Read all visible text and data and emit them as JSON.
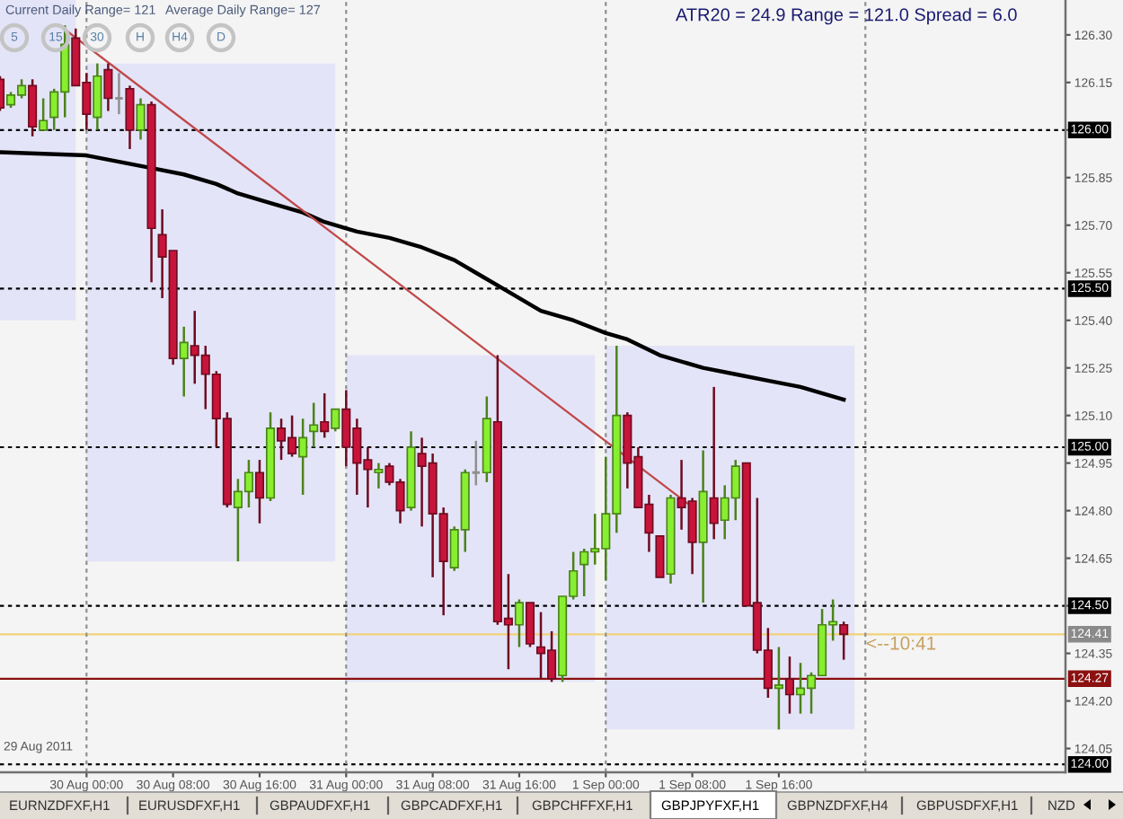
{
  "chart_data": {
    "type": "candlestick",
    "x": [
      "2011-08-29T16:00",
      "2011-08-29T17:00",
      "2011-08-29T18:00",
      "2011-08-29T19:00",
      "2011-08-29T20:00",
      "2011-08-29T21:00",
      "2011-08-29T22:00",
      "2011-08-29T23:00",
      "2011-08-30T00:00",
      "2011-08-30T01:00",
      "2011-08-30T02:00",
      "2011-08-30T03:00",
      "2011-08-30T04:00",
      "2011-08-30T05:00",
      "2011-08-30T06:00",
      "2011-08-30T07:00",
      "2011-08-30T08:00",
      "2011-08-30T09:00",
      "2011-08-30T10:00",
      "2011-08-30T11:00",
      "2011-08-30T12:00",
      "2011-08-30T13:00",
      "2011-08-30T14:00",
      "2011-08-30T15:00",
      "2011-08-30T16:00",
      "2011-08-30T17:00",
      "2011-08-30T18:00",
      "2011-08-30T19:00",
      "2011-08-30T20:00",
      "2011-08-30T21:00",
      "2011-08-30T22:00",
      "2011-08-30T23:00",
      "2011-08-31T00:00",
      "2011-08-31T01:00",
      "2011-08-31T02:00",
      "2011-08-31T03:00",
      "2011-08-31T04:00",
      "2011-08-31T05:00",
      "2011-08-31T06:00",
      "2011-08-31T07:00",
      "2011-08-31T08:00",
      "2011-08-31T09:00",
      "2011-08-31T10:00",
      "2011-08-31T11:00",
      "2011-08-31T12:00",
      "2011-08-31T13:00",
      "2011-08-31T14:00",
      "2011-08-31T15:00",
      "2011-08-31T16:00",
      "2011-08-31T17:00",
      "2011-08-31T18:00",
      "2011-08-31T19:00",
      "2011-08-31T20:00",
      "2011-08-31T21:00",
      "2011-08-31T22:00",
      "2011-08-31T23:00",
      "2011-09-01T00:00",
      "2011-09-01T01:00",
      "2011-09-01T02:00",
      "2011-09-01T03:00",
      "2011-09-01T04:00",
      "2011-09-01T05:00",
      "2011-09-01T06:00",
      "2011-09-01T07:00",
      "2011-09-01T08:00",
      "2011-09-01T09:00",
      "2011-09-01T10:00",
      "2011-09-01T11:00",
      "2011-09-01T12:00",
      "2011-09-01T13:00",
      "2011-09-01T14:00",
      "2011-09-01T15:00",
      "2011-09-01T16:00",
      "2011-09-01T17:00",
      "2011-09-01T18:00",
      "2011-09-01T19:00",
      "2011-09-01T20:00",
      "2011-09-01T21:00",
      "2011-09-01T22:00"
    ],
    "ohlc": [
      [
        126.16,
        126.17,
        126.06,
        126.07
      ],
      [
        126.08,
        126.12,
        126.07,
        126.11
      ],
      [
        126.11,
        126.16,
        126.1,
        126.14
      ],
      [
        126.14,
        126.16,
        125.98,
        126.01
      ],
      [
        126.0,
        126.1,
        126.0,
        126.03
      ],
      [
        126.04,
        126.13,
        126.0,
        126.12
      ],
      [
        126.12,
        126.33,
        126.04,
        126.27
      ],
      [
        126.29,
        126.32,
        126.14,
        126.14
      ],
      [
        126.15,
        126.18,
        126.0,
        126.05
      ],
      [
        126.04,
        126.21,
        126.0,
        126.17
      ],
      [
        126.19,
        126.21,
        126.06,
        126.1
      ],
      [
        126.1,
        126.18,
        126.05,
        126.1
      ],
      [
        126.13,
        126.14,
        125.94,
        126.0
      ],
      [
        126.0,
        126.1,
        125.97,
        126.08
      ],
      [
        126.08,
        126.09,
        125.52,
        125.69
      ],
      [
        125.67,
        125.75,
        125.47,
        125.6
      ],
      [
        125.62,
        125.62,
        125.26,
        125.28
      ],
      [
        125.28,
        125.38,
        125.16,
        125.33
      ],
      [
        125.32,
        125.43,
        125.2,
        125.29
      ],
      [
        125.29,
        125.32,
        125.12,
        125.23
      ],
      [
        125.23,
        125.24,
        125.0,
        125.09
      ],
      [
        125.09,
        125.11,
        124.81,
        124.82
      ],
      [
        124.81,
        124.9,
        124.64,
        124.86
      ],
      [
        124.86,
        124.96,
        124.81,
        124.92
      ],
      [
        124.92,
        124.96,
        124.76,
        124.84
      ],
      [
        124.84,
        125.11,
        124.83,
        125.06
      ],
      [
        125.06,
        125.09,
        124.96,
        125.02
      ],
      [
        125.03,
        125.1,
        124.97,
        124.98
      ],
      [
        124.97,
        125.09,
        124.85,
        125.03
      ],
      [
        125.05,
        125.14,
        125.0,
        125.07
      ],
      [
        125.08,
        125.17,
        125.03,
        125.05
      ],
      [
        125.06,
        125.12,
        125.05,
        125.12
      ],
      [
        125.12,
        125.18,
        124.94,
        125.0
      ],
      [
        125.06,
        125.09,
        124.85,
        124.95
      ],
      [
        124.96,
        125.0,
        124.81,
        124.93
      ],
      [
        124.92,
        124.95,
        124.87,
        124.93
      ],
      [
        124.94,
        124.95,
        124.88,
        124.89
      ],
      [
        124.89,
        124.9,
        124.76,
        124.8
      ],
      [
        124.81,
        125.05,
        124.8,
        125.0
      ],
      [
        124.98,
        125.03,
        124.75,
        124.94
      ],
      [
        124.95,
        124.98,
        124.59,
        124.79
      ],
      [
        124.79,
        124.81,
        124.47,
        124.64
      ],
      [
        124.62,
        124.75,
        124.61,
        124.74
      ],
      [
        124.74,
        124.93,
        124.67,
        124.92
      ],
      [
        124.92,
        125.02,
        124.88,
        124.92
      ],
      [
        124.92,
        125.16,
        124.89,
        125.09
      ],
      [
        125.08,
        125.29,
        124.44,
        124.45
      ],
      [
        124.46,
        124.6,
        124.3,
        124.44
      ],
      [
        124.44,
        124.52,
        124.37,
        124.51
      ],
      [
        124.51,
        124.51,
        124.37,
        124.38
      ],
      [
        124.37,
        124.48,
        124.27,
        124.35
      ],
      [
        124.36,
        124.42,
        124.26,
        124.27
      ],
      [
        124.28,
        124.53,
        124.26,
        124.53
      ],
      [
        124.53,
        124.67,
        124.52,
        124.61
      ],
      [
        124.63,
        124.68,
        124.53,
        124.67
      ],
      [
        124.67,
        124.79,
        124.63,
        124.68
      ],
      [
        124.68,
        124.97,
        124.58,
        124.79
      ],
      [
        124.79,
        125.32,
        124.73,
        125.1
      ],
      [
        125.1,
        125.11,
        124.87,
        124.95
      ],
      [
        124.97,
        125.0,
        124.81,
        124.81
      ],
      [
        124.82,
        124.85,
        124.67,
        124.73
      ],
      [
        124.72,
        124.72,
        124.59,
        124.59
      ],
      [
        124.6,
        124.85,
        124.57,
        124.84
      ],
      [
        124.84,
        124.96,
        124.74,
        124.81
      ],
      [
        124.83,
        124.84,
        124.6,
        124.7
      ],
      [
        124.7,
        124.99,
        124.51,
        124.86
      ],
      [
        124.84,
        125.19,
        124.71,
        124.76
      ],
      [
        124.77,
        124.88,
        124.71,
        124.84
      ],
      [
        124.84,
        124.96,
        124.77,
        124.94
      ],
      [
        124.95,
        124.95,
        124.5,
        124.5
      ],
      [
        124.51,
        124.84,
        124.35,
        124.36
      ],
      [
        124.36,
        124.43,
        124.21,
        124.24
      ],
      [
        124.24,
        124.37,
        124.11,
        124.25
      ],
      [
        124.27,
        124.34,
        124.16,
        124.22
      ],
      [
        124.22,
        124.32,
        124.16,
        124.24
      ],
      [
        124.24,
        124.29,
        124.16,
        124.28
      ],
      [
        124.28,
        124.49,
        124.28,
        124.44
      ],
      [
        124.44,
        124.52,
        124.39,
        124.45
      ],
      [
        124.44,
        124.45,
        124.33,
        124.41
      ]
    ],
    "colors": [
      "#c8143a",
      "#88ee30",
      "#88ee30",
      "#c8143a",
      "#88ee30",
      "#88ee30",
      "#88ee30",
      "#c8143a",
      "#c8143a",
      "#88ee30",
      "#c8143a",
      "#909090",
      "#c8143a",
      "#88ee30",
      "#c8143a",
      "#c8143a",
      "#c8143a",
      "#88ee30",
      "#c8143a",
      "#c8143a",
      "#c8143a",
      "#c8143a",
      "#88ee30",
      "#88ee30",
      "#c8143a",
      "#88ee30",
      "#c8143a",
      "#c8143a",
      "#88ee30",
      "#88ee30",
      "#c8143a",
      "#88ee30",
      "#c8143a",
      "#c8143a",
      "#c8143a",
      "#88ee30",
      "#c8143a",
      "#c8143a",
      "#88ee30",
      "#c8143a",
      "#c8143a",
      "#c8143a",
      "#88ee30",
      "#88ee30",
      "#909090",
      "#88ee30",
      "#c8143a",
      "#c8143a",
      "#88ee30",
      "#c8143a",
      "#c8143a",
      "#c8143a",
      "#88ee30",
      "#88ee30",
      "#88ee30",
      "#88ee30",
      "#88ee30",
      "#88ee30",
      "#c8143a",
      "#c8143a",
      "#c8143a",
      "#c8143a",
      "#88ee30",
      "#c8143a",
      "#c8143a",
      "#88ee30",
      "#c8143a",
      "#88ee30",
      "#88ee30",
      "#c8143a",
      "#c8143a",
      "#c8143a",
      "#88ee30",
      "#c8143a",
      "#88ee30",
      "#88ee30",
      "#88ee30",
      "#88ee30",
      "#c8143a"
    ],
    "series": [
      {
        "type": "bar",
        "color": "#e4e4f8",
        "x": [
          "2011-08-29T19:30",
          "2011-08-30T11:30",
          "2011-08-31T11:30",
          "2011-09-01T11:30"
        ],
        "base": [
          125.4,
          124.64,
          124.26,
          124.11
        ],
        "values": [
          1.01,
          1.57,
          1.03,
          1.21
        ]
      },
      {
        "type": "line",
        "color": "#000000",
        "x": [
          "2011-08-29T16:00",
          "2011-08-30T00:00",
          "2011-08-30T03:00",
          "2011-08-30T06:00",
          "2011-08-30T09:00",
          "2011-08-30T12:00",
          "2011-08-30T14:00",
          "2011-08-30T17:00",
          "2011-08-30T20:00",
          "2011-08-30T22:00",
          "2011-08-31T01:00",
          "2011-08-31T04:00",
          "2011-08-31T07:00",
          "2011-08-31T10:00",
          "2011-08-31T12:00",
          "2011-08-31T15:00",
          "2011-08-31T18:00",
          "2011-08-31T21:00",
          "2011-09-01T00:00",
          "2011-09-01T02:00",
          "2011-09-01T05:00",
          "2011-09-01T09:00",
          "2011-09-01T12:00",
          "2011-09-01T15:00",
          "2011-09-01T18:00",
          "2011-09-01T22:00"
        ],
        "values": [
          125.93,
          125.92,
          125.9,
          125.88,
          125.86,
          125.83,
          125.8,
          125.77,
          125.74,
          125.71,
          125.68,
          125.66,
          125.63,
          125.59,
          125.55,
          125.49,
          125.43,
          125.4,
          125.36,
          125.34,
          125.29,
          125.25,
          125.23,
          125.21,
          125.19,
          125.15
        ]
      },
      {
        "type": "line",
        "color": "#c04848",
        "x": [
          "2011-08-29T21:30",
          "2011-09-01T07:40"
        ],
        "values": [
          126.33,
          124.82
        ]
      }
    ],
    "xlim": [
      "2011-08-29T16:00",
      "2011-09-02T18:30"
    ],
    "xticks": [
      {
        "value": "2011-08-30T00:00",
        "label": "30 Aug 00:00"
      },
      {
        "value": "2011-08-30T08:00",
        "label": "30 Aug 08:00"
      },
      {
        "value": "2011-08-30T16:00",
        "label": "30 Aug 16:00"
      },
      {
        "value": "2011-08-31T00:00",
        "label": "31 Aug 00:00"
      },
      {
        "value": "2011-08-31T08:00",
        "label": "31 Aug 08:00"
      },
      {
        "value": "2011-08-31T16:00",
        "label": "31 Aug 16:00"
      },
      {
        "value": "2011-09-01T00:00",
        "label": "1 Sep 00:00"
      },
      {
        "value": "2011-09-01T08:00",
        "label": "1 Sep 08:00"
      },
      {
        "value": "2011-09-01T16:00",
        "label": "1 Sep 16:00"
      }
    ],
    "ylim": [
      123.975,
      126.41
    ],
    "yticks": [
      {
        "value": 126.3,
        "label": "126.30"
      },
      126.15,
      {
        "value": 126.0,
        "label": null
      },
      125.85,
      {
        "value": 125.7,
        "label": "125.70"
      },
      125.55,
      {
        "value": 125.4,
        "label": "125.40"
      },
      125.25,
      {
        "value": 125.1,
        "label": "125.10"
      },
      124.95,
      {
        "value": 124.8,
        "label": "124.80"
      },
      124.65,
      {
        "value": 124.5,
        "label": null
      },
      124.35,
      {
        "value": 124.2,
        "label": "124.20"
      },
      124.05
    ],
    "ref_lines": [
      {
        "axis": "y",
        "value": 126.0,
        "label": "126.00",
        "color": "#000000",
        "line_style": "dotted"
      },
      {
        "axis": "y",
        "value": 125.5,
        "label": "125.50",
        "color": "#000000",
        "line_style": "dotted"
      },
      {
        "axis": "y",
        "value": 125.0,
        "label": "125.00",
        "color": "#000000",
        "line_style": "dotted"
      },
      {
        "axis": "y",
        "value": 124.5,
        "label": "124.50",
        "color": "#000000",
        "line_style": "dotted"
      },
      {
        "axis": "y",
        "value": 124.0,
        "label": "124.00",
        "color": "#000000",
        "line_style": "dotted"
      },
      {
        "axis": "y",
        "value": 124.41,
        "label": "124.41",
        "color": "#f2d27a",
        "line_style": "solid"
      },
      {
        "axis": "y",
        "value": 124.27,
        "label": "124.27",
        "color": "#8b1010",
        "line_style": "solid"
      },
      {
        "axis": "x",
        "value": "2011-08-30T00:00",
        "color": "#909090",
        "line_style": "dotted"
      },
      {
        "axis": "x",
        "value": "2011-08-31T00:00",
        "color": "#909090",
        "line_style": "dotted"
      },
      {
        "axis": "x",
        "value": "2011-09-01T00:00",
        "color": "#909090",
        "line_style": "dotted"
      },
      {
        "axis": "x",
        "value": "2011-09-02T00:00",
        "color": "#909090",
        "line_style": "dotted"
      }
    ],
    "annotations": [
      "Current Daily Range= 121",
      "Average Daily Range= 127",
      "ATR20 = 24.9 Range = 121.0 Spread = 6.0",
      "5",
      "15",
      "30",
      "H",
      "H4",
      "D",
      "<--10:41",
      "29 Aug 2011",
      "EURNZDFXF,H1",
      "EURUSDFXF,H1",
      "GBPAUDFXF,H1",
      "GBPCADFXF,H1",
      "GBPCHFFXF,H1",
      "GBPJPYFXF,H1",
      "GBPNZDFXF,H4",
      "GBPUSDFXF,H1",
      "NZD"
    ]
  }
}
